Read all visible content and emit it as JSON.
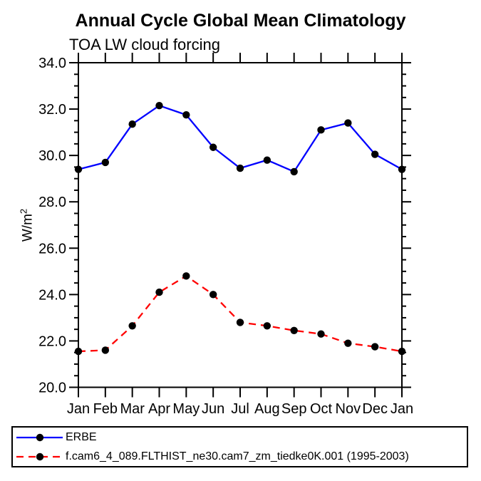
{
  "chart_data": {
    "type": "line",
    "title": "Annual Cycle Global Mean Climatology",
    "subtitle": "TOA LW cloud forcing",
    "ylabel_base": "W/m",
    "ylabel_sup": "2",
    "categories": [
      "Jan",
      "Feb",
      "Mar",
      "Apr",
      "May",
      "Jun",
      "Jul",
      "Aug",
      "Sep",
      "Oct",
      "Nov",
      "Dec",
      "Jan"
    ],
    "series": [
      {
        "name": "ERBE",
        "color": "#0000ff",
        "style": "solid",
        "marker": "circle",
        "marker_color": "#000000",
        "values": [
          29.4,
          29.7,
          31.35,
          32.15,
          31.75,
          30.35,
          29.45,
          29.8,
          29.3,
          31.1,
          31.4,
          30.05,
          29.4
        ]
      },
      {
        "name": "f.cam6_4_089.FLTHIST_ne30.cam7_zm_tiedke0K.001 (1995-2003)",
        "color": "#ff0000",
        "style": "dashed",
        "marker": "circle",
        "marker_color": "#000000",
        "values": [
          21.55,
          21.6,
          22.65,
          24.1,
          24.8,
          24.0,
          22.8,
          22.65,
          22.45,
          22.3,
          21.9,
          21.75,
          21.55
        ]
      }
    ],
    "ylim": [
      20,
      34
    ],
    "y_major_step": 2,
    "y_minor_step": 0.5,
    "y_tick_labels": [
      "20.0",
      "22.0",
      "24.0",
      "26.0",
      "28.0",
      "30.0",
      "32.0",
      "34.0"
    ],
    "grid": false,
    "legend_position": "bottom-left-box",
    "axis_color": "#000000"
  }
}
